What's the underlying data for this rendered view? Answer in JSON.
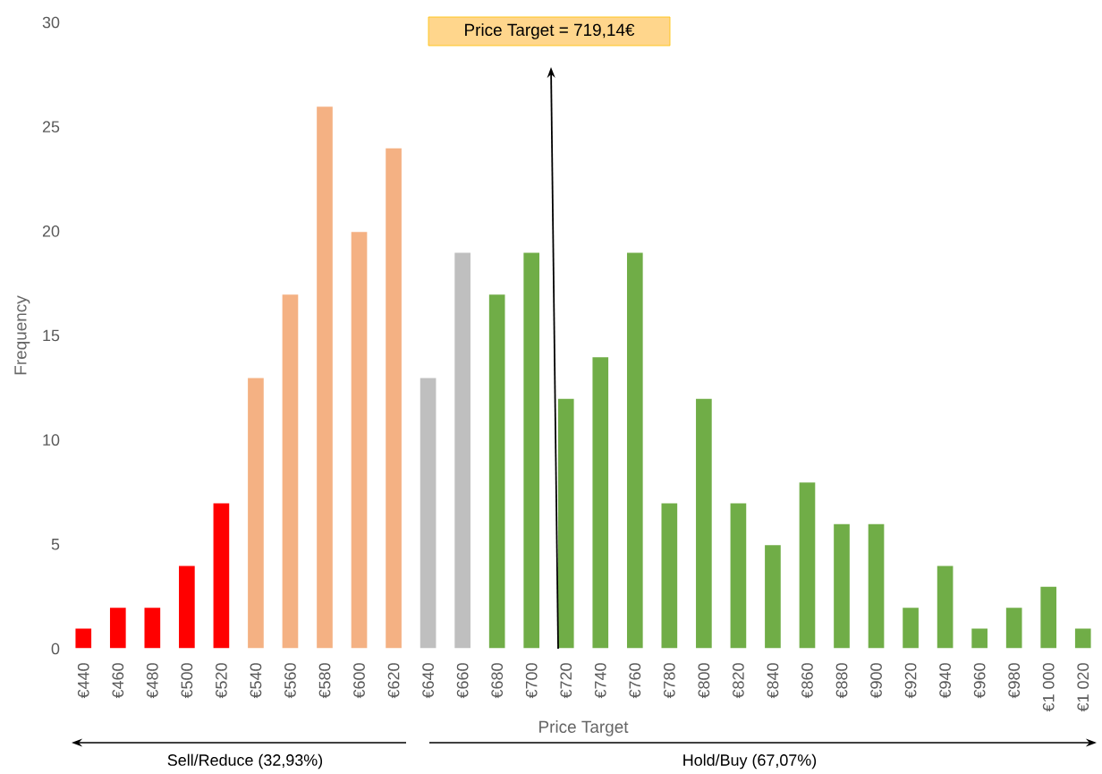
{
  "chart_data": {
    "type": "bar",
    "xlabel": "Price Target",
    "ylabel": "Frequency",
    "categories": [
      "€440",
      "€460",
      "€480",
      "€500",
      "€520",
      "€540",
      "€560",
      "€580",
      "€600",
      "€620",
      "€640",
      "€660",
      "€680",
      "€700",
      "€720",
      "€740",
      "€760",
      "€780",
      "€800",
      "€820",
      "€840",
      "€860",
      "€880",
      "€900",
      "€920",
      "€940",
      "€960",
      "€980",
      "€1 000",
      "€1 020"
    ],
    "values": [
      1,
      2,
      2,
      4,
      7,
      13,
      17,
      26,
      20,
      24,
      13,
      19,
      17,
      19,
      12,
      14,
      19,
      7,
      12,
      7,
      5,
      8,
      6,
      6,
      2,
      4,
      1,
      2,
      3,
      1
    ],
    "colors": [
      "#ff0000",
      "#ff0000",
      "#ff0000",
      "#ff0000",
      "#ff0000",
      "#f4b183",
      "#f4b183",
      "#f4b183",
      "#f4b183",
      "#f4b183",
      "#bfbfbf",
      "#bfbfbf",
      "#70ad47",
      "#70ad47",
      "#70ad47",
      "#70ad47",
      "#70ad47",
      "#70ad47",
      "#70ad47",
      "#70ad47",
      "#70ad47",
      "#70ad47",
      "#70ad47",
      "#70ad47",
      "#70ad47",
      "#70ad47",
      "#70ad47",
      "#70ad47",
      "#70ad47",
      "#70ad47"
    ],
    "ylim": [
      0,
      30
    ],
    "yticks": [
      0,
      5,
      10,
      15,
      20,
      25,
      30
    ],
    "grid": false,
    "annotations": [
      "Price Target = 719,14€",
      "Sell/Reduce (32,93%)",
      "Hold/Buy (67,07%)"
    ]
  }
}
